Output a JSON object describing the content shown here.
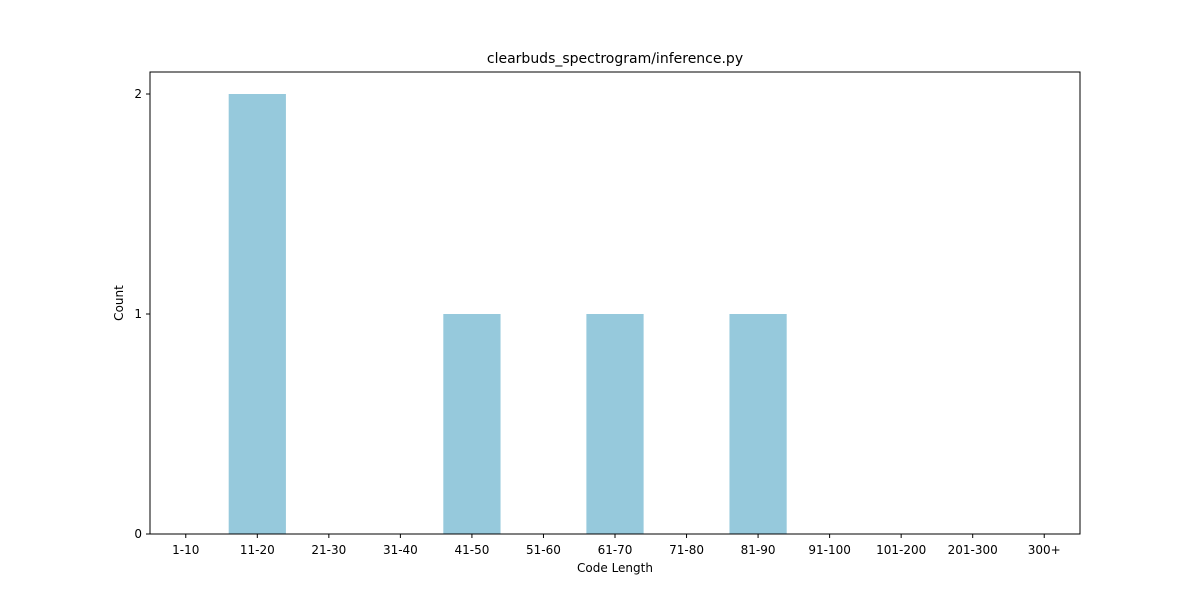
{
  "chart_data": {
    "type": "bar",
    "title": "clearbuds_spectrogram/inference.py",
    "xlabel": "Code Length",
    "ylabel": "Count",
    "categories": [
      "1-10",
      "11-20",
      "21-30",
      "31-40",
      "41-50",
      "51-60",
      "61-70",
      "71-80",
      "81-90",
      "91-100",
      "101-200",
      "201-300",
      "300+"
    ],
    "values": [
      0,
      2,
      0,
      0,
      1,
      0,
      1,
      0,
      1,
      0,
      0,
      0,
      0
    ],
    "ylim": [
      0,
      2.1
    ],
    "yticks": [
      0,
      1,
      2
    ],
    "grid": false,
    "bar_color": "#96c9dc"
  }
}
